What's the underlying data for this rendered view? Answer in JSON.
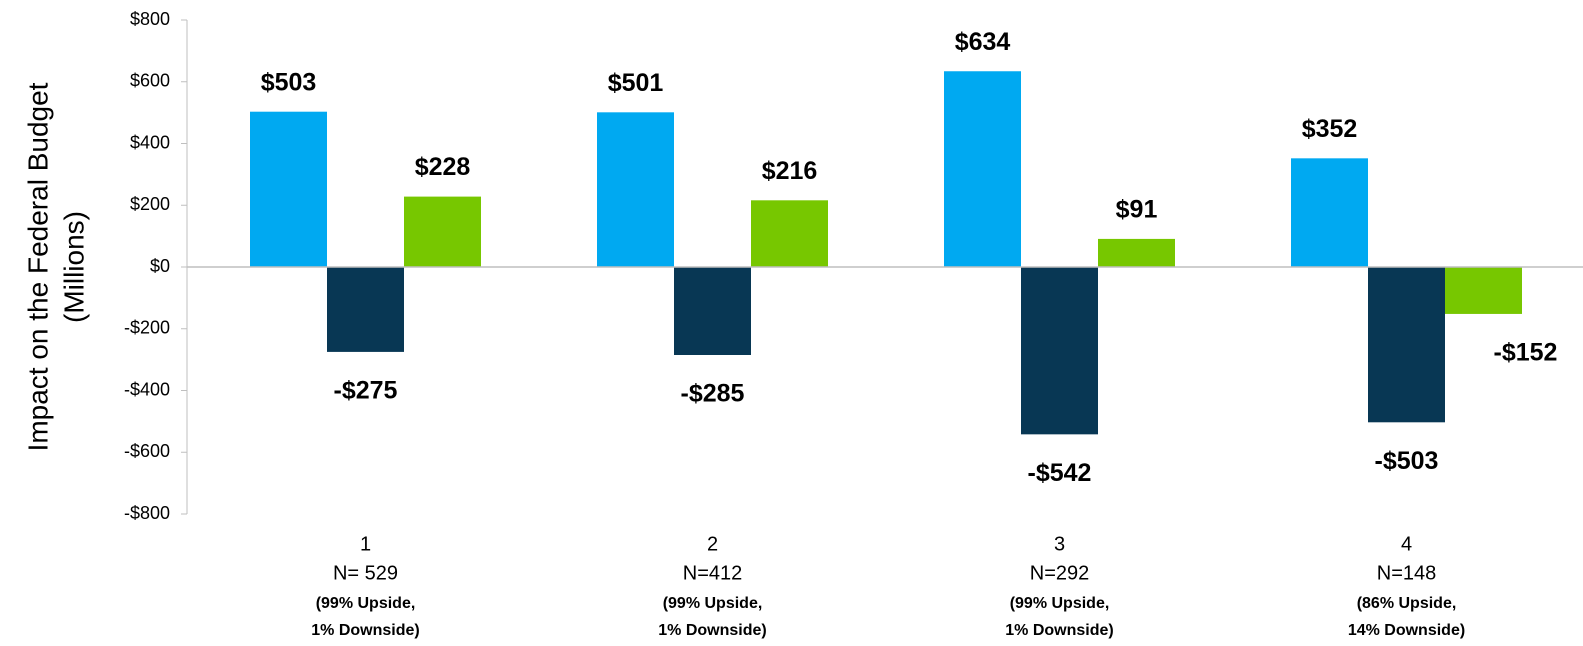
{
  "chart_data": {
    "type": "bar",
    "ylabel": [
      "Impact on the Federal Budget",
      "(Millions)"
    ],
    "categories": [
      [
        "1",
        "N= 529",
        "(99% Upside,",
        "1% Downside)"
      ],
      [
        "2",
        "N=412",
        "(99% Upside,",
        "1% Downside)"
      ],
      [
        "3",
        "N=292",
        "(99% Upside,",
        "1% Downside)"
      ],
      [
        "4",
        "N=148",
        "(86% Upside,",
        "14% Downside)"
      ]
    ],
    "series": [
      {
        "color": "#00a9f1",
        "values": [
          503,
          501,
          634,
          352
        ],
        "value_labels": [
          "$503",
          "$501",
          "$634",
          "$352"
        ]
      },
      {
        "color": "#083754",
        "values": [
          -275,
          -285,
          -542,
          -503
        ],
        "value_labels": [
          "-$275",
          "-$285",
          "-$542",
          "-$503"
        ]
      },
      {
        "color": "#77c700",
        "values": [
          228,
          216,
          91,
          -152
        ],
        "value_labels": [
          "$228",
          "$216",
          "$91",
          "-$152"
        ]
      }
    ],
    "ylim": [
      -800,
      800
    ],
    "yticks": [
      {
        "value": -800,
        "label": "-$800"
      },
      {
        "value": -600,
        "label": "-$600"
      },
      {
        "value": -400,
        "label": "-$400"
      },
      {
        "value": -200,
        "label": "-$200"
      },
      {
        "value": 0,
        "label": "$0"
      },
      {
        "value": 200,
        "label": "$200"
      },
      {
        "value": 400,
        "label": "$400"
      },
      {
        "value": 600,
        "label": "$600"
      },
      {
        "value": 800,
        "label": "$800"
      }
    ],
    "positive_label_color": "#000000",
    "negative_label_color": "#ff0000"
  }
}
